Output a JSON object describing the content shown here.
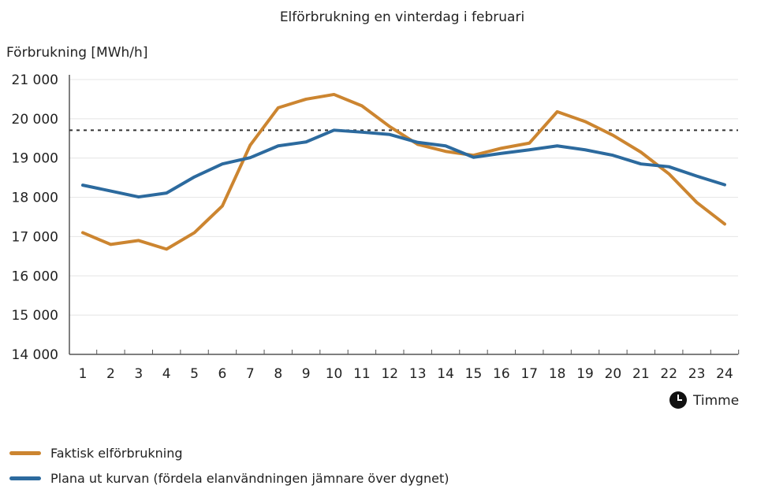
{
  "chart_data": {
    "type": "line",
    "title": "Elförbrukning en vinterdag i februari",
    "ylabel": "Förbrukning [MWh/h]",
    "xlabel": "Timme",
    "x_icon": "clock-icon",
    "x": [
      1,
      2,
      3,
      4,
      5,
      6,
      7,
      8,
      9,
      10,
      11,
      12,
      13,
      14,
      15,
      16,
      17,
      18,
      19,
      20,
      21,
      22,
      23,
      24
    ],
    "ylim": [
      14000,
      21000
    ],
    "yticks": [
      14000,
      15000,
      16000,
      17000,
      18000,
      19000,
      20000,
      21000
    ],
    "ytick_labels": [
      "14 000",
      "15 000",
      "16 000",
      "17 000",
      "18 000",
      "19 000",
      "20 000",
      "21 000"
    ],
    "grid": true,
    "reference_line": {
      "value": 19710,
      "style": "dashed",
      "color": "#333333"
    },
    "legend_position": "bottom-left",
    "series": [
      {
        "name": "Faktisk elförbrukning",
        "color": "#cc8530",
        "values": [
          17100,
          16800,
          16900,
          16680,
          17100,
          17780,
          19330,
          20280,
          20500,
          20620,
          20330,
          19800,
          19350,
          19170,
          19070,
          19250,
          19380,
          20180,
          19930,
          19580,
          19150,
          18600,
          17870,
          17320
        ]
      },
      {
        "name": "Plana ut kurvan (fördela elanvändningen jämnare över dygnet)",
        "color": "#2c6a9e",
        "values": [
          18310,
          18160,
          18010,
          18110,
          18520,
          18850,
          19010,
          19310,
          19410,
          19710,
          19660,
          19600,
          19400,
          19310,
          19020,
          19120,
          19210,
          19310,
          19210,
          19070,
          18850,
          18780,
          18540,
          18320
        ]
      }
    ]
  }
}
